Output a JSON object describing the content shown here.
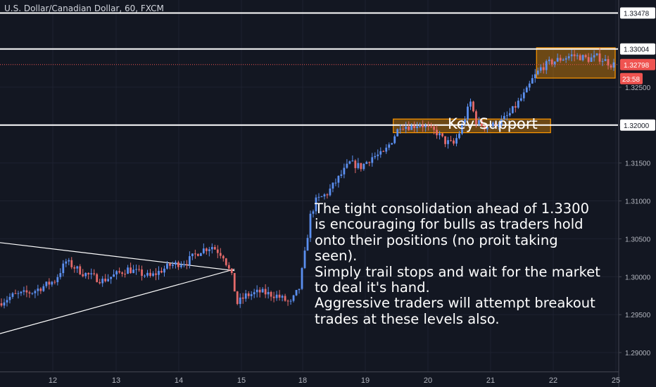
{
  "header": {
    "title": "U.S. Dollar/Canadian Dollar, 60, FXCM"
  },
  "chart_data": {
    "type": "candlestick",
    "title": "U.S. Dollar/Canadian Dollar, 60, FXCM",
    "symbol": "USDCAD",
    "timeframe": "60",
    "source": "FXCM",
    "x_tick_labels": [
      "12",
      "13",
      "14",
      "15",
      "18",
      "19",
      "20",
      "21",
      "22",
      "25"
    ],
    "y_tick_labels": [
      "1.32500",
      "1.32000",
      "1.31500",
      "1.31000",
      "1.30500",
      "1.30000",
      "1.29500",
      "1.29000"
    ],
    "ylim": [
      1.2875,
      1.3365
    ],
    "price_labels": [
      {
        "value": 1.33478,
        "text": "1.33478",
        "style": "level"
      },
      {
        "value": 1.33004,
        "text": "1.33004",
        "style": "level"
      },
      {
        "value": 1.32798,
        "text": "1.32798",
        "style": "current"
      },
      {
        "value": 1.32,
        "text": "1.32000",
        "style": "level"
      }
    ],
    "countdown": "23:58",
    "horizontal_levels": [
      1.33478,
      1.33004,
      1.32
    ],
    "current_price": 1.32798,
    "approx_path": [
      [
        0,
        1.2965
      ],
      [
        5,
        1.2975
      ],
      [
        12,
        1.298
      ],
      [
        20,
        1.2995
      ],
      [
        24,
        1.302
      ],
      [
        30,
        1.3005
      ],
      [
        37,
        1.2995
      ],
      [
        46,
        1.301
      ],
      [
        54,
        1.3
      ],
      [
        61,
        1.3015
      ],
      [
        67,
        1.302
      ],
      [
        72,
        1.3035
      ],
      [
        76,
        1.304
      ],
      [
        80,
        1.3028
      ],
      [
        83,
        1.3
      ],
      [
        85,
        1.2965
      ],
      [
        88,
        1.2975
      ],
      [
        93,
        1.298
      ],
      [
        99,
        1.2975
      ],
      [
        104,
        1.2965
      ],
      [
        107,
        1.2985
      ],
      [
        109,
        1.303
      ],
      [
        111,
        1.308
      ],
      [
        113,
        1.31
      ],
      [
        117,
        1.311
      ],
      [
        121,
        1.313
      ],
      [
        125,
        1.315
      ],
      [
        129,
        1.3145
      ],
      [
        133,
        1.3158
      ],
      [
        137,
        1.3162
      ],
      [
        140,
        1.318
      ],
      [
        143,
        1.32
      ],
      [
        147,
        1.3198
      ],
      [
        150,
        1.3202
      ],
      [
        153,
        1.3195
      ],
      [
        156,
        1.319
      ],
      [
        159,
        1.3178
      ],
      [
        162,
        1.3175
      ],
      [
        164,
        1.319
      ],
      [
        166,
        1.321
      ],
      [
        168,
        1.323
      ],
      [
        170,
        1.3205
      ],
      [
        173,
        1.3198
      ],
      [
        176,
        1.32
      ],
      [
        179,
        1.3205
      ],
      [
        182,
        1.3215
      ],
      [
        185,
        1.323
      ],
      [
        188,
        1.3245
      ],
      [
        190,
        1.326
      ],
      [
        193,
        1.3275
      ],
      [
        196,
        1.3282
      ],
      [
        200,
        1.3287
      ],
      [
        204,
        1.3292
      ],
      [
        207,
        1.329
      ],
      [
        210,
        1.3287
      ],
      [
        213,
        1.329
      ],
      [
        216,
        1.3285
      ],
      [
        218,
        1.328
      ]
    ],
    "trendlines": [
      {
        "from": [
          0,
          1.3045
        ],
        "to": [
          83,
          1.3008
        ]
      },
      {
        "from": [
          0,
          1.2925
        ],
        "to": [
          83,
          1.301
        ]
      }
    ],
    "zones": [
      {
        "from_index": 140,
        "to_index": 196,
        "y_low": 1.319,
        "y_high": 1.3208
      },
      {
        "from_index": 191,
        "to_index": 219,
        "y_low": 1.3262,
        "y_high": 1.3302
      }
    ],
    "annotations": [
      {
        "text": "Key Support"
      },
      {
        "lines": [
          "The tight consolidation ahead of 1.3300",
          "is encouraging for bulls as traders hold",
          "onto their positions (no proit taking",
          "seen).",
          "Simply trail stops and wait for the market",
          "to deal it's hand.",
          "Aggressive traders will attempt breakout",
          "trades at these levels also."
        ]
      }
    ],
    "colors": {
      "up": "#5b8ff0",
      "down": "#e46a6a",
      "background": "#131722",
      "grid": "#1e2230",
      "zone": "#ff9800",
      "current_price": "#ef5350"
    }
  }
}
